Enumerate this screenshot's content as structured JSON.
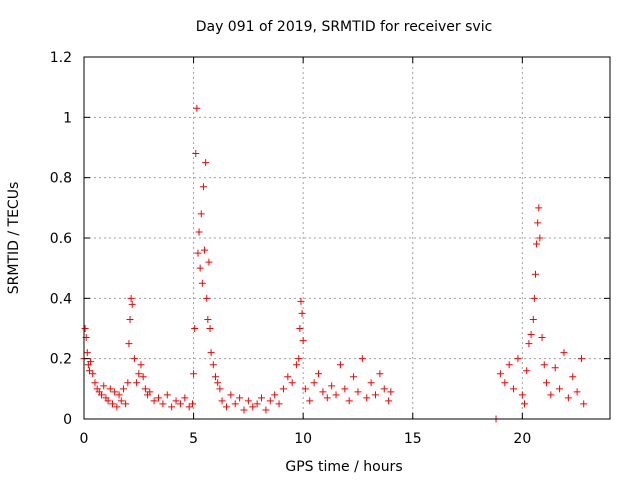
{
  "chart_data": {
    "type": "scatter",
    "title": "Day 091 of 2019, SRMTID for receiver svic",
    "xlabel": "GPS time / hours",
    "ylabel": "SRMTID / TECUs",
    "xlim": [
      0,
      24
    ],
    "ylim": [
      0,
      1.2
    ],
    "xticks": [
      0,
      5,
      10,
      15,
      20
    ],
    "xtick_labels": [
      "0",
      "5",
      "10",
      "15",
      "20"
    ],
    "yticks": [
      0,
      0.2,
      0.4,
      0.6,
      0.8,
      1.0,
      1.2
    ],
    "ytick_labels": [
      "0",
      "0.2",
      "0.4",
      "0.6",
      "0.8",
      "1",
      "1.2"
    ],
    "grid": true,
    "marker": "+",
    "color": "#ff0000",
    "series": [
      {
        "name": "SRMTID",
        "x": [
          0.0,
          0.05,
          0.1,
          0.15,
          0.2,
          0.25,
          0.3,
          0.4,
          0.5,
          0.6,
          0.7,
          0.8,
          0.9,
          1.0,
          1.1,
          1.2,
          1.3,
          1.4,
          1.5,
          1.6,
          1.7,
          1.8,
          1.9,
          2.0,
          2.05,
          2.1,
          2.15,
          2.2,
          2.3,
          2.4,
          2.5,
          2.6,
          2.7,
          2.8,
          2.9,
          3.0,
          3.2,
          3.4,
          3.6,
          3.8,
          4.0,
          4.2,
          4.4,
          4.6,
          4.8,
          4.95,
          5.0,
          5.05,
          5.1,
          5.15,
          5.2,
          5.25,
          5.3,
          5.35,
          5.4,
          5.45,
          5.5,
          5.55,
          5.6,
          5.65,
          5.7,
          5.75,
          5.8,
          5.9,
          6.0,
          6.1,
          6.2,
          6.3,
          6.5,
          6.7,
          6.9,
          7.1,
          7.3,
          7.5,
          7.7,
          7.9,
          8.1,
          8.3,
          8.5,
          8.7,
          8.9,
          9.1,
          9.3,
          9.5,
          9.7,
          9.8,
          9.85,
          9.9,
          9.95,
          10.0,
          10.1,
          10.3,
          10.5,
          10.7,
          10.9,
          11.1,
          11.3,
          11.5,
          11.7,
          11.9,
          12.1,
          12.3,
          12.5,
          12.7,
          12.9,
          13.1,
          13.3,
          13.5,
          13.7,
          13.9,
          14.0,
          18.8,
          19.0,
          19.2,
          19.4,
          19.6,
          19.8,
          20.0,
          20.1,
          20.2,
          20.3,
          20.4,
          20.5,
          20.55,
          20.6,
          20.65,
          20.7,
          20.75,
          20.8,
          20.9,
          21.0,
          21.1,
          21.3,
          21.5,
          21.7,
          21.9,
          22.1,
          22.3,
          22.5,
          22.7,
          22.8
        ],
        "y": [
          0.2,
          0.3,
          0.27,
          0.22,
          0.18,
          0.16,
          0.19,
          0.15,
          0.12,
          0.1,
          0.09,
          0.08,
          0.11,
          0.07,
          0.06,
          0.1,
          0.05,
          0.09,
          0.04,
          0.08,
          0.06,
          0.1,
          0.05,
          0.12,
          0.25,
          0.33,
          0.4,
          0.38,
          0.2,
          0.12,
          0.15,
          0.18,
          0.14,
          0.1,
          0.08,
          0.09,
          0.06,
          0.07,
          0.05,
          0.08,
          0.04,
          0.06,
          0.05,
          0.07,
          0.04,
          0.05,
          0.15,
          0.3,
          0.88,
          1.03,
          0.55,
          0.62,
          0.5,
          0.68,
          0.45,
          0.77,
          0.56,
          0.85,
          0.4,
          0.33,
          0.52,
          0.3,
          0.22,
          0.18,
          0.14,
          0.12,
          0.1,
          0.06,
          0.04,
          0.08,
          0.05,
          0.07,
          0.03,
          0.06,
          0.04,
          0.05,
          0.07,
          0.03,
          0.06,
          0.08,
          0.05,
          0.1,
          0.14,
          0.12,
          0.18,
          0.2,
          0.3,
          0.39,
          0.35,
          0.26,
          0.1,
          0.06,
          0.12,
          0.15,
          0.09,
          0.07,
          0.11,
          0.08,
          0.18,
          0.1,
          0.06,
          0.14,
          0.09,
          0.2,
          0.07,
          0.12,
          0.08,
          0.15,
          0.1,
          0.06,
          0.09,
          0.0,
          0.15,
          0.12,
          0.18,
          0.1,
          0.2,
          0.08,
          0.05,
          0.16,
          0.25,
          0.28,
          0.33,
          0.4,
          0.48,
          0.58,
          0.65,
          0.7,
          0.6,
          0.27,
          0.18,
          0.12,
          0.08,
          0.17,
          0.1,
          0.22,
          0.07,
          0.14,
          0.09,
          0.2,
          0.05
        ]
      }
    ]
  }
}
